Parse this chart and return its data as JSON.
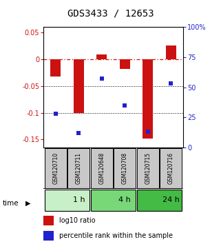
{
  "title": "GDS3433 / 12653",
  "samples": [
    "GSM120710",
    "GSM120711",
    "GSM120648",
    "GSM120708",
    "GSM120715",
    "GSM120716"
  ],
  "log10_ratio": [
    -0.033,
    -0.1,
    0.008,
    -0.018,
    -0.148,
    0.025
  ],
  "percentile_rank": [
    28,
    12,
    57,
    35,
    13,
    53
  ],
  "time_groups": [
    {
      "label": "1 h",
      "start": 0,
      "end": 2,
      "color": "#c8f0c8"
    },
    {
      "label": "4 h",
      "start": 2,
      "end": 4,
      "color": "#78d878"
    },
    {
      "label": "24 h",
      "start": 4,
      "end": 6,
      "color": "#44bb44"
    }
  ],
  "bar_color": "#cc1111",
  "dot_color": "#2222cc",
  "ylim_left": [
    -0.165,
    0.06
  ],
  "ylim_right": [
    0,
    100
  ],
  "yticks_left": [
    0.05,
    0.0,
    -0.05,
    -0.1,
    -0.15
  ],
  "yticks_left_labels": [
    "0.05",
    "0",
    "-0.05",
    "-0.1",
    "-0.15"
  ],
  "yticks_right": [
    100,
    75,
    50,
    25,
    0
  ],
  "yticks_right_labels": [
    "100%",
    "75",
    "50",
    "25",
    "0"
  ],
  "dotted_lines": [
    -0.05,
    -0.1
  ],
  "bar_width": 0.45,
  "background_color": "#ffffff",
  "sample_box_color": "#c8c8c8",
  "time_label": "time"
}
